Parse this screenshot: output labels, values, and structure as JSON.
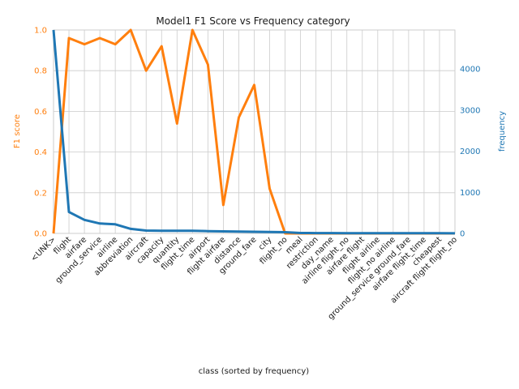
{
  "chart_data": {
    "type": "line",
    "title": "Model1 F1 Score vs Frequency category",
    "xlabel": "class (sorted by frequency)",
    "categories": [
      "<UNK>",
      "flight",
      "airfare",
      "ground_service",
      "airline",
      "abbreviation",
      "aircraft",
      "capacity",
      "quantity",
      "flight_time",
      "airport",
      "flight airfare",
      "distance",
      "ground_fare",
      "city",
      "flight_no",
      "meal",
      "restriction",
      "day_name",
      "airline flight_no",
      "airfare flight",
      "flight airline",
      "flight_no airline",
      "ground_service ground_fare",
      "airfare flight_time",
      "cheapest",
      "aircraft flight flight_no"
    ],
    "left_axis": {
      "label": "F1 score",
      "ylim": [
        0,
        1.0
      ],
      "ticks": [
        "0.0",
        "0.2",
        "0.4",
        "0.6",
        "0.8",
        "1.0"
      ],
      "color": "#ff7f0e"
    },
    "right_axis": {
      "label": "frequency",
      "ylim": [
        0,
        4950
      ],
      "ticks": [
        "0",
        "1000",
        "2000",
        "3000",
        "4000"
      ],
      "color": "#1f77b4"
    },
    "grid": true,
    "series": [
      {
        "axis": "left",
        "color": "#ff7f0e",
        "values": [
          0.0,
          0.96,
          0.93,
          0.96,
          0.93,
          1.0,
          0.8,
          0.92,
          0.54,
          1.0,
          0.83,
          0.14,
          0.57,
          0.73,
          0.22,
          0.0,
          0.0,
          0.0,
          0.0,
          0.0,
          0.0,
          0.0,
          0.0,
          0.0,
          0.0,
          0.0,
          0.0
        ]
      },
      {
        "axis": "right",
        "color": "#1f77b4",
        "values": [
          4950,
          520,
          330,
          240,
          220,
          110,
          70,
          65,
          65,
          65,
          55,
          50,
          45,
          40,
          35,
          30,
          10,
          8,
          7,
          6,
          5,
          5,
          4,
          4,
          3,
          3,
          2
        ]
      }
    ]
  }
}
